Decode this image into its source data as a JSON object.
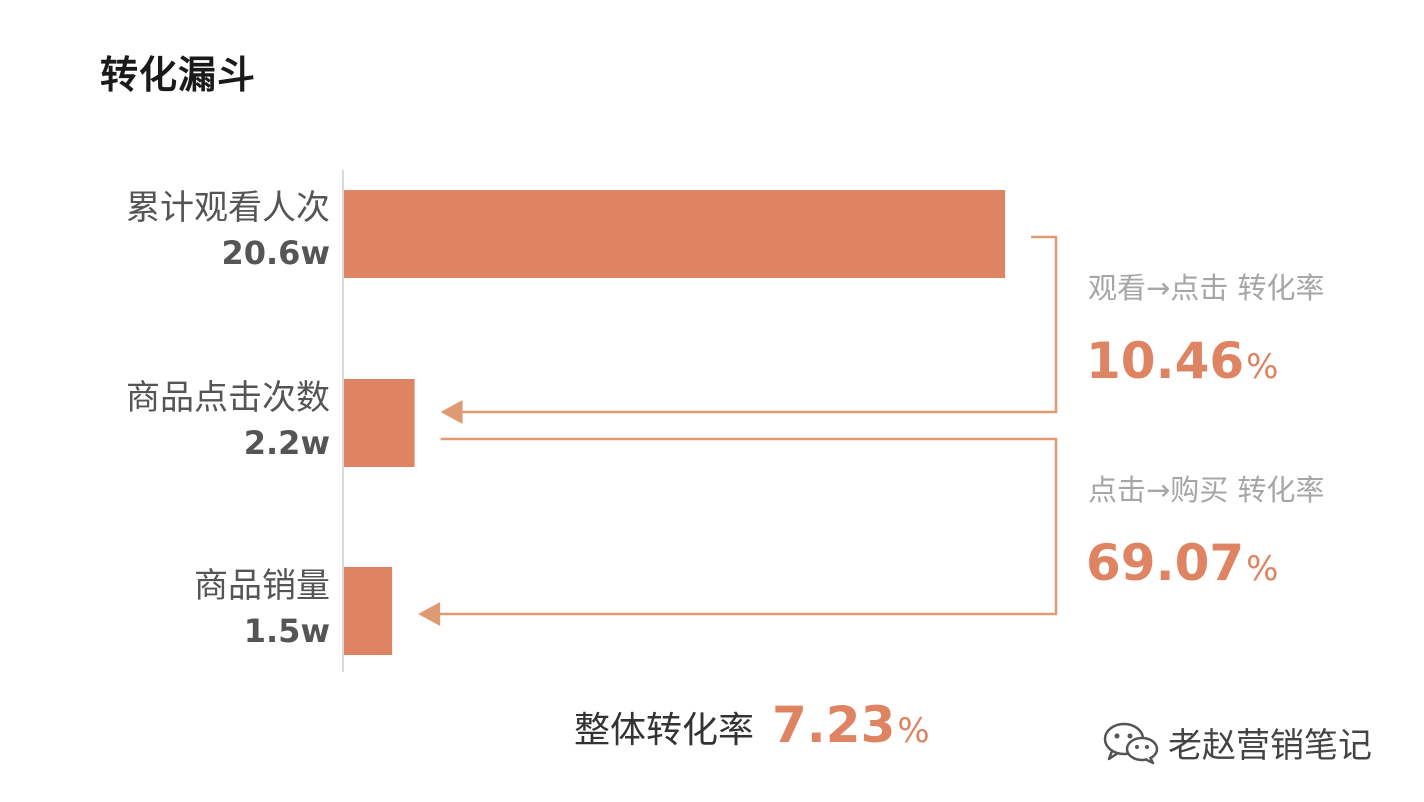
{
  "chart_data": {
    "type": "bar",
    "orientation": "horizontal",
    "title": "转化漏斗",
    "categories": [
      "累计观看人次",
      "商品点击次数",
      "商品销量"
    ],
    "values": [
      20.6,
      2.2,
      1.5
    ],
    "value_labels": [
      "20.6w",
      "2.2w",
      "1.5w"
    ],
    "unit": "w",
    "xlim": [
      0,
      21.5
    ],
    "bar_color": "#df8463",
    "arrow_color": "#e09a73",
    "axis_color": "#d9d9d9",
    "conversions": [
      {
        "from": "累计观看人次",
        "to": "商品点击次数",
        "caption": "观看→点击 转化率",
        "value": "10.46",
        "pct_sign": "%"
      },
      {
        "from": "商品点击次数",
        "to": "商品销量",
        "caption": "点击→购买 转化率",
        "value": "69.07",
        "pct_sign": "%"
      }
    ],
    "overall": {
      "label": "整体转化率",
      "value": "7.23",
      "pct_sign": "%"
    }
  },
  "watermark": {
    "icon": "wechat-icon",
    "text": "老赵营销笔记"
  }
}
